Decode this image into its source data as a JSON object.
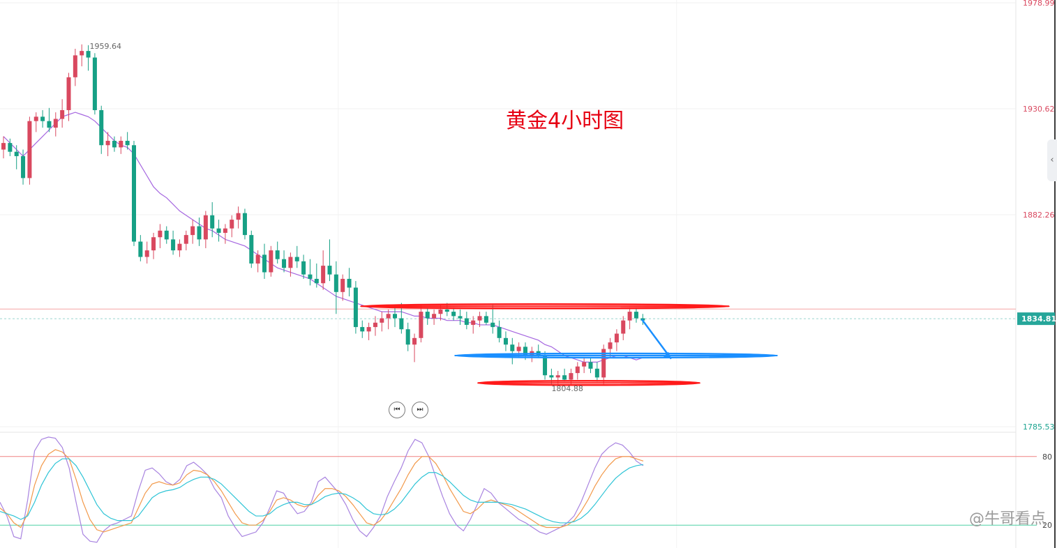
{
  "chart_data": [
    {
      "type": "candlestick",
      "title": "黄金4小时图",
      "ylim": [
        1785.53,
        1978.99
      ],
      "y_ticks": [
        "1978.99",
        "1930.62",
        "1882.26",
        "1785.53"
      ],
      "current_price": "1834.81",
      "annotations": {
        "high": "1959.64",
        "low": "1804.88"
      },
      "resistance_level": 1840.5,
      "support_level": 1818,
      "lower_support_level": 1805.5,
      "colors": {
        "up": "#d9485f",
        "down": "#16a085",
        "ma": "#a566e0",
        "resistance": "#ff1a1a",
        "support": "#1a8fff",
        "price_line": "#26a69a"
      },
      "ohlc": [
        [
          1912,
          1918,
          1908,
          1915
        ],
        [
          1915,
          1917,
          1909,
          1911
        ],
        [
          1911,
          1914,
          1903,
          1909
        ],
        [
          1909,
          1912,
          1896,
          1899
        ],
        [
          1899,
          1927,
          1896,
          1925
        ],
        [
          1925,
          1929,
          1920,
          1927
        ],
        [
          1927,
          1930,
          1922,
          1925
        ],
        [
          1925,
          1931,
          1920,
          1922
        ],
        [
          1922,
          1929,
          1918,
          1926
        ],
        [
          1926,
          1935,
          1922,
          1930
        ],
        [
          1930,
          1947,
          1925,
          1945
        ],
        [
          1945,
          1958,
          1941,
          1955
        ],
        [
          1955,
          1960,
          1950,
          1957
        ],
        [
          1957,
          1959.64,
          1948,
          1954
        ],
        [
          1954,
          1956,
          1928,
          1930
        ],
        [
          1930,
          1932,
          1910,
          1914
        ],
        [
          1914,
          1920,
          1909,
          1916
        ],
        [
          1916,
          1918,
          1911,
          1913
        ],
        [
          1913,
          1918,
          1910,
          1916
        ],
        [
          1916,
          1920,
          1912,
          1914
        ],
        [
          1914,
          1916,
          1868,
          1870
        ],
        [
          1870,
          1873,
          1861,
          1863
        ],
        [
          1863,
          1870,
          1860,
          1866
        ],
        [
          1866,
          1874,
          1862,
          1872
        ],
        [
          1872,
          1878,
          1867,
          1875
        ],
        [
          1875,
          1877,
          1869,
          1871
        ],
        [
          1871,
          1875,
          1864,
          1866
        ],
        [
          1866,
          1871,
          1863,
          1869
        ],
        [
          1869,
          1875,
          1866,
          1873
        ],
        [
          1873,
          1880,
          1869,
          1877
        ],
        [
          1877,
          1881,
          1868,
          1871
        ],
        [
          1871,
          1884,
          1867,
          1882
        ],
        [
          1882,
          1888,
          1872,
          1876
        ],
        [
          1876,
          1880,
          1870,
          1874
        ],
        [
          1874,
          1878,
          1869,
          1876
        ],
        [
          1876,
          1882,
          1872,
          1880
        ],
        [
          1880,
          1886,
          1876,
          1883
        ],
        [
          1883,
          1885,
          1871,
          1873
        ],
        [
          1873,
          1875,
          1858,
          1860
        ],
        [
          1860,
          1866,
          1856,
          1864
        ],
        [
          1864,
          1869,
          1853,
          1856
        ],
        [
          1856,
          1868,
          1854,
          1866
        ],
        [
          1866,
          1870,
          1860,
          1862
        ],
        [
          1862,
          1866,
          1856,
          1858
        ],
        [
          1858,
          1865,
          1854,
          1863
        ],
        [
          1863,
          1868,
          1858,
          1861
        ],
        [
          1861,
          1864,
          1853,
          1855
        ],
        [
          1855,
          1862,
          1850,
          1853
        ],
        [
          1853,
          1860,
          1849,
          1851
        ],
        [
          1851,
          1866,
          1848,
          1859
        ],
        [
          1859,
          1871,
          1852,
          1855
        ],
        [
          1855,
          1861,
          1837,
          1847
        ],
        [
          1847,
          1855,
          1843,
          1853
        ],
        [
          1853,
          1858,
          1845,
          1849
        ],
        [
          1849,
          1852,
          1828,
          1831
        ],
        [
          1831,
          1834,
          1826,
          1829
        ],
        [
          1829,
          1833,
          1825,
          1831
        ],
        [
          1831,
          1836,
          1827,
          1833
        ],
        [
          1833,
          1838,
          1829,
          1835
        ],
        [
          1835,
          1839,
          1830,
          1837
        ],
        [
          1837,
          1841,
          1831,
          1835
        ],
        [
          1835,
          1842,
          1828,
          1830
        ],
        [
          1830,
          1833,
          1820,
          1823
        ],
        [
          1823,
          1828,
          1815,
          1826
        ],
        [
          1826,
          1841,
          1824,
          1838
        ],
        [
          1838,
          1840,
          1832,
          1835
        ],
        [
          1835,
          1839,
          1832,
          1837
        ],
        [
          1837,
          1841,
          1834,
          1839
        ],
        [
          1839,
          1842,
          1836,
          1838
        ],
        [
          1838,
          1840,
          1834,
          1836
        ],
        [
          1836,
          1839,
          1832,
          1835
        ],
        [
          1835,
          1838,
          1830,
          1832
        ],
        [
          1832,
          1836,
          1828,
          1834
        ],
        [
          1834,
          1838,
          1831,
          1836
        ],
        [
          1836,
          1838,
          1832,
          1833
        ],
        [
          1833,
          1841,
          1828,
          1831
        ],
        [
          1831,
          1834,
          1824,
          1826
        ],
        [
          1826,
          1829,
          1820,
          1823
        ],
        [
          1823,
          1826,
          1814,
          1820
        ],
        [
          1820,
          1824,
          1817,
          1822
        ],
        [
          1822,
          1824,
          1816,
          1818
        ],
        [
          1818,
          1822,
          1815,
          1820
        ],
        [
          1820,
          1823,
          1817,
          1818
        ],
        [
          1818,
          1820,
          1807,
          1809
        ],
        [
          1809,
          1812,
          1805,
          1808
        ],
        [
          1808,
          1811,
          1805,
          1809
        ],
        [
          1809,
          1812,
          1806,
          1807
        ],
        [
          1807,
          1812,
          1804.88,
          1810
        ],
        [
          1810,
          1815,
          1807,
          1813
        ],
        [
          1813,
          1817,
          1810,
          1815
        ],
        [
          1815,
          1817,
          1810,
          1812
        ],
        [
          1812,
          1815,
          1806,
          1808
        ],
        [
          1808,
          1823,
          1805,
          1821
        ],
        [
          1821,
          1826,
          1817,
          1824
        ],
        [
          1824,
          1830,
          1820,
          1828
        ],
        [
          1828,
          1836,
          1825,
          1834
        ],
        [
          1834,
          1840,
          1830,
          1838
        ],
        [
          1838,
          1840,
          1833,
          1835
        ],
        [
          1835,
          1837,
          1832,
          1834
        ]
      ],
      "ma_line": [
        1918,
        1915,
        1912,
        1909,
        1912,
        1915,
        1918,
        1921,
        1924,
        1927,
        1928,
        1929,
        1928,
        1927,
        1925,
        1922,
        1919,
        1916,
        1914,
        1913,
        1910,
        1905,
        1900,
        1895,
        1892,
        1890,
        1887,
        1884,
        1882,
        1880,
        1878,
        1876,
        1875,
        1873,
        1871,
        1870,
        1869,
        1868,
        1866,
        1864,
        1862,
        1860,
        1858,
        1857,
        1856,
        1855,
        1854,
        1853,
        1851,
        1849,
        1847,
        1845,
        1844,
        1843,
        1842,
        1841,
        1840,
        1839,
        1838,
        1838,
        1838,
        1838,
        1837,
        1836,
        1836,
        1835,
        1835,
        1835,
        1834,
        1834,
        1834,
        1833,
        1833,
        1832,
        1832,
        1832,
        1831,
        1830,
        1829,
        1828,
        1827,
        1826,
        1825,
        1823,
        1822,
        1820,
        1818,
        1817,
        1816,
        1815,
        1815,
        1815,
        1816,
        1817,
        1818,
        1818,
        1817,
        1816,
        1817
      ],
      "projection_note": ""
    },
    {
      "type": "line",
      "title": "",
      "ylim": [
        0,
        100
      ],
      "y_ticks": [
        "80",
        "20"
      ],
      "reference_levels": [
        80,
        20
      ],
      "series": [
        {
          "name": "",
          "color": "#a883e0",
          "values": [
            40,
            28,
            10,
            8,
            42,
            85,
            95,
            97,
            96,
            88,
            70,
            40,
            12,
            6,
            5,
            15,
            20,
            22,
            25,
            28,
            50,
            68,
            70,
            65,
            58,
            55,
            60,
            72,
            75,
            70,
            64,
            52,
            44,
            28,
            18,
            10,
            12,
            14,
            22,
            35,
            50,
            48,
            38,
            30,
            32,
            40,
            58,
            62,
            55,
            48,
            38,
            25,
            15,
            10,
            18,
            28,
            45,
            58,
            70,
            85,
            95,
            92,
            80,
            62,
            45,
            30,
            20,
            15,
            25,
            38,
            52,
            48,
            40,
            35,
            30,
            25,
            22,
            18,
            14,
            12,
            15,
            18,
            22,
            28,
            40,
            55,
            70,
            82,
            88,
            92,
            90,
            84,
            76,
            72
          ]
        },
        {
          "name": "",
          "color": "#f2994a",
          "values": [
            35,
            30,
            22,
            18,
            30,
            55,
            72,
            82,
            86,
            84,
            78,
            60,
            40,
            25,
            16,
            14,
            16,
            18,
            20,
            22,
            35,
            48,
            56,
            58,
            56,
            55,
            57,
            64,
            68,
            67,
            64,
            58,
            50,
            40,
            30,
            22,
            20,
            20,
            24,
            32,
            42,
            44,
            42,
            38,
            36,
            38,
            46,
            52,
            52,
            50,
            45,
            38,
            30,
            22,
            20,
            24,
            32,
            42,
            52,
            64,
            74,
            80,
            80,
            74,
            64,
            52,
            42,
            32,
            30,
            34,
            40,
            42,
            40,
            38,
            36,
            32,
            28,
            24,
            20,
            18,
            18,
            18,
            20,
            24,
            32,
            42,
            54,
            64,
            72,
            78,
            80,
            80,
            78,
            76
          ]
        },
        {
          "name": "",
          "color": "#2ec4d6",
          "values": [
            32,
            30,
            28,
            25,
            28,
            40,
            55,
            66,
            74,
            78,
            78,
            72,
            62,
            50,
            38,
            30,
            26,
            24,
            24,
            24,
            28,
            36,
            44,
            48,
            50,
            51,
            53,
            57,
            60,
            62,
            62,
            60,
            56,
            50,
            44,
            38,
            32,
            28,
            28,
            30,
            35,
            38,
            40,
            40,
            38,
            38,
            41,
            45,
            47,
            48,
            47,
            44,
            40,
            34,
            30,
            29,
            30,
            34,
            40,
            48,
            56,
            62,
            66,
            66,
            63,
            58,
            52,
            46,
            42,
            40,
            40,
            40,
            40,
            39,
            38,
            36,
            34,
            31,
            28,
            25,
            23,
            22,
            22,
            23,
            26,
            31,
            38,
            46,
            54,
            61,
            66,
            70,
            72,
            73
          ]
        }
      ]
    }
  ],
  "ui": {
    "prev_button_icon": "skip-back-icon",
    "next_button_icon": "skip-forward-icon",
    "side_toggle_icon": "chevron-left-icon",
    "watermark": "@牛哥看点"
  }
}
